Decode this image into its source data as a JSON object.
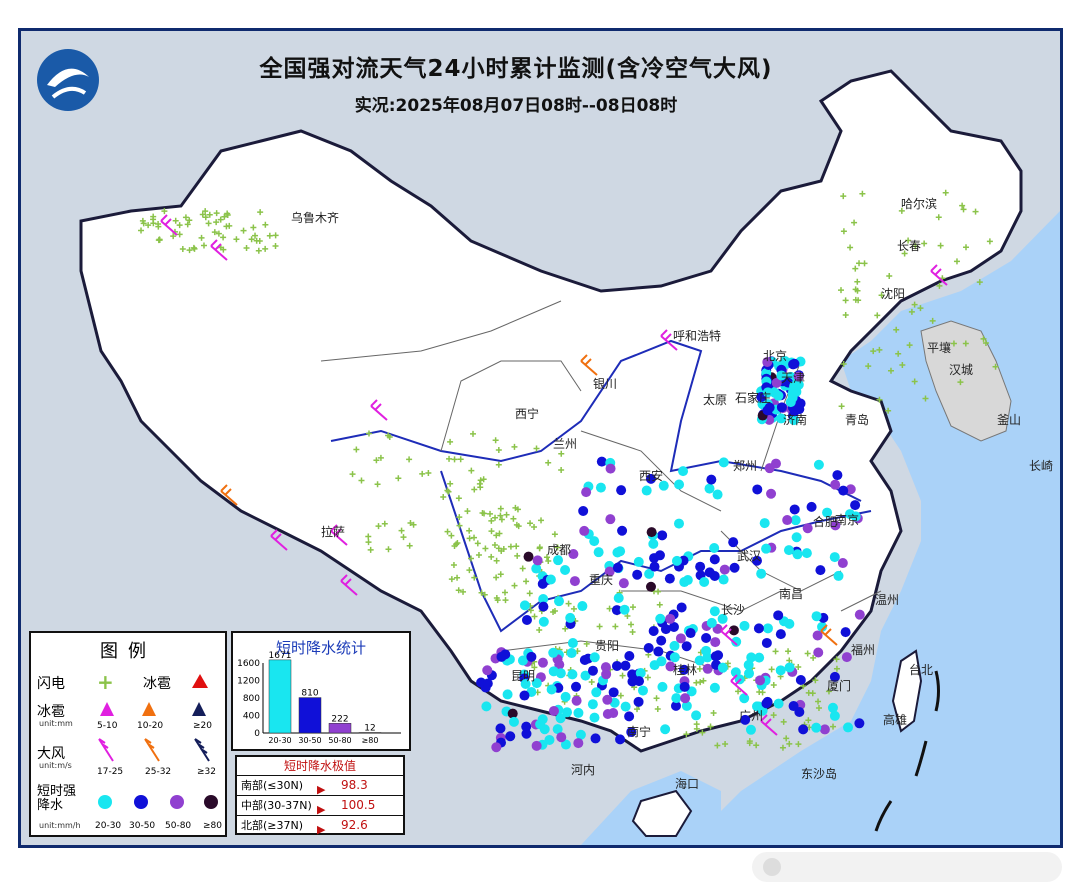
{
  "header": {
    "title": "全国强对流天气24小时累计监测(含冷空气大风)",
    "subtitle": "实况:2025年08月07日08时--08日08时"
  },
  "cities": [
    {
      "key": "urumqi",
      "name": "乌鲁木齐"
    },
    {
      "key": "harbin",
      "name": "哈尔滨"
    },
    {
      "key": "changchun",
      "name": "长春"
    },
    {
      "key": "shenyang",
      "name": "沈阳"
    },
    {
      "key": "hohhot",
      "name": "呼和浩特"
    },
    {
      "key": "beijing",
      "name": "北京"
    },
    {
      "key": "tianjin",
      "name": "天津"
    },
    {
      "key": "yinchuan",
      "name": "银川"
    },
    {
      "key": "taiyuan",
      "name": "太原"
    },
    {
      "key": "shijiazhuang",
      "name": "石家庄"
    },
    {
      "key": "jinan",
      "name": "济南"
    },
    {
      "key": "qingdao",
      "name": "青岛"
    },
    {
      "key": "xining",
      "name": "西宁"
    },
    {
      "key": "lanzhou",
      "name": "兰州"
    },
    {
      "key": "xian",
      "name": "西安"
    },
    {
      "key": "zhengzhou",
      "name": "郑州"
    },
    {
      "key": "hefei",
      "name": "合肥"
    },
    {
      "key": "nanjing",
      "name": "南京"
    },
    {
      "key": "lhasa",
      "name": "拉萨"
    },
    {
      "key": "chengdu",
      "name": "成都"
    },
    {
      "key": "chongqing",
      "name": "重庆"
    },
    {
      "key": "wuhan",
      "name": "武汉"
    },
    {
      "key": "changsha",
      "name": "长沙"
    },
    {
      "key": "nanchang",
      "name": "南昌"
    },
    {
      "key": "guiyang",
      "name": "贵阳"
    },
    {
      "key": "kunming",
      "name": "昆明"
    },
    {
      "key": "guilin",
      "name": "桂林"
    },
    {
      "key": "nanning",
      "name": "南宁"
    },
    {
      "key": "guangzhou",
      "name": "广州"
    },
    {
      "key": "fuzhou",
      "name": "福州"
    },
    {
      "key": "wenzhou",
      "name": "温州"
    },
    {
      "key": "xiamen",
      "name": "厦门"
    },
    {
      "key": "taipei",
      "name": "台北"
    },
    {
      "key": "gaoxiong",
      "name": "高雄"
    },
    {
      "key": "pyongyang",
      "name": "平壤"
    },
    {
      "key": "hancheng",
      "name": "汉城"
    },
    {
      "key": "busan",
      "name": "釜山"
    },
    {
      "key": "nagasaki",
      "name": "长崎"
    },
    {
      "key": "hanoi",
      "name": "河内"
    },
    {
      "key": "dongsha",
      "name": "东沙岛"
    },
    {
      "key": "haikou",
      "name": "海口"
    }
  ],
  "legend": {
    "title": "图例",
    "lightning": {
      "label": "闪电",
      "symbol": "+"
    },
    "hail_label": "冰雹",
    "hail_row_label": "冰雹",
    "hail_unit": "unit:mm",
    "hail_classes": [
      "5-10",
      "10-20",
      "≥20"
    ],
    "hail_colors": [
      "#e020e0",
      "#f07010",
      "#141e5a"
    ],
    "hail_general_color": "#e01010",
    "wind_label": "大风",
    "wind_unit": "unit:m/s",
    "wind_classes": [
      "17-25",
      "25-32",
      "≥32"
    ],
    "wind_colors": [
      "#e020e0",
      "#f07010",
      "#141e5a"
    ],
    "rain_label": "短时强降水",
    "rain_unit": "unit:mm/h",
    "rain_classes": [
      "20-30",
      "30-50",
      "50-80",
      "≥80"
    ],
    "rain_colors": [
      "#19e6f0",
      "#1010d8",
      "#9040d0",
      "#2a0a2a"
    ]
  },
  "stats": {
    "title": "短时降水统计",
    "ymax": 1600,
    "yticks": [
      "1600",
      "1200",
      "800",
      "400",
      "0"
    ],
    "categories": [
      "20-30",
      "30-50",
      "50-80",
      "≥80"
    ],
    "values": [
      1671,
      810,
      222,
      12
    ],
    "value_labels": [
      "1671",
      "810",
      "222",
      "12"
    ],
    "colors": [
      "#19e6f0",
      "#1010d8",
      "#9040d0",
      "#2a0a2a"
    ]
  },
  "extremes": {
    "title": "短时降水极值",
    "rows": [
      {
        "region": "南部(≤30N)",
        "value": "98.3"
      },
      {
        "region": "中部(30-37N)",
        "value": "100.5"
      },
      {
        "region": "北部(≥37N)",
        "value": "92.6"
      }
    ]
  },
  "colors": {
    "frame": "#0f2a6e",
    "land": "#ffffff",
    "sea": "#aad2f8",
    "outside": "#d8d8d8",
    "lightning": "#8bc34a"
  }
}
